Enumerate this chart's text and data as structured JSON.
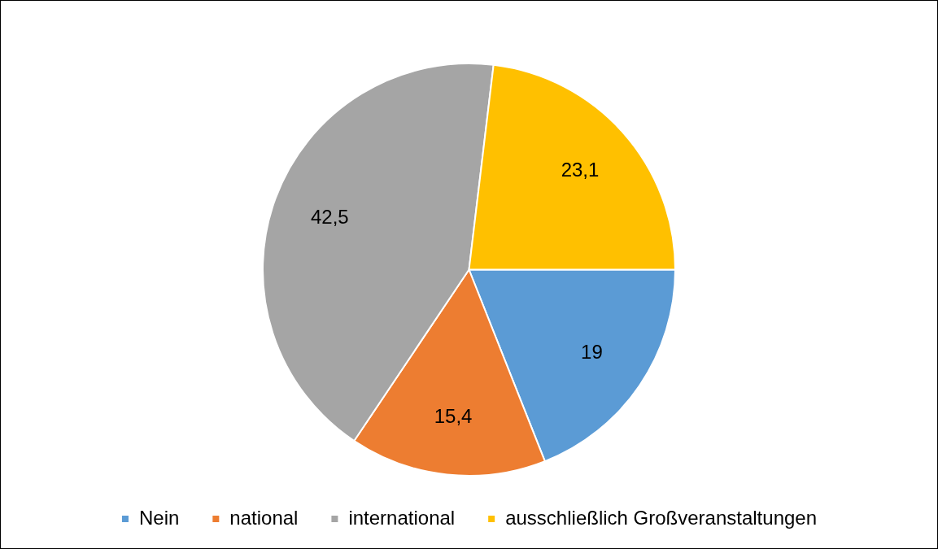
{
  "chart_data": {
    "type": "pie",
    "categories": [
      "Nein",
      "national",
      "international",
      "ausschließlich Großveranstaltungen"
    ],
    "values": [
      19,
      15.4,
      42.5,
      23.1
    ],
    "colors": [
      "#5b9bd5",
      "#ed7d31",
      "#a5a5a5",
      "#ffc000"
    ],
    "value_labels": [
      "19",
      "15,4",
      "42,5",
      "23,1"
    ],
    "legend": "bottom"
  }
}
